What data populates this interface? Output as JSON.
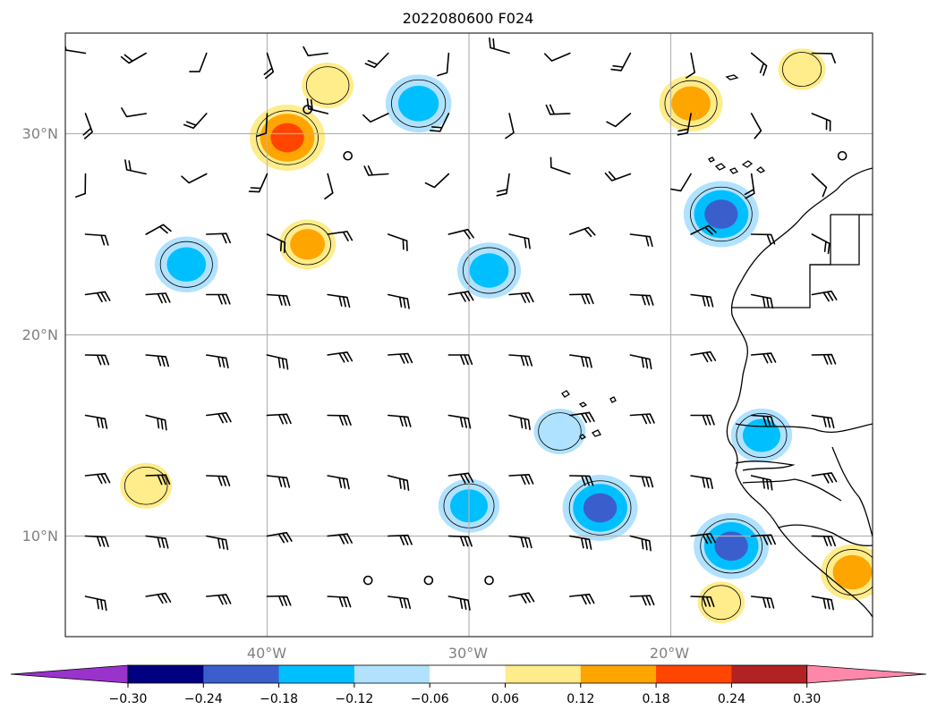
{
  "chart_data": {
    "type": "contour-map",
    "title": "2022080600 F024",
    "extent": {
      "lon_min": -50,
      "lon_max": -10,
      "lat_min": 5,
      "lat_max": 35
    },
    "xticks": [
      {
        "value": -40,
        "label": "40°W"
      },
      {
        "value": -30,
        "label": "30°W"
      },
      {
        "value": -20,
        "label": "20°W"
      }
    ],
    "yticks": [
      {
        "value": 30,
        "label": "30°N"
      },
      {
        "value": 20,
        "label": "20°N"
      },
      {
        "value": 10,
        "label": "10°N"
      }
    ],
    "grid": true,
    "colorbar": {
      "orientation": "horizontal",
      "extend": "both",
      "ticks": [
        {
          "value": -0.3,
          "label": "−0.30"
        },
        {
          "value": -0.24,
          "label": "−0.24"
        },
        {
          "value": -0.18,
          "label": "−0.18"
        },
        {
          "value": -0.12,
          "label": "−0.12"
        },
        {
          "value": -0.06,
          "label": "−0.06"
        },
        {
          "value": 0.06,
          "label": "0.06"
        },
        {
          "value": 0.12,
          "label": "0.12"
        },
        {
          "value": 0.18,
          "label": "0.18"
        },
        {
          "value": 0.24,
          "label": "0.24"
        },
        {
          "value": 0.3,
          "label": "0.30"
        }
      ],
      "colors": [
        "#9933cc",
        "#000080",
        "#3a5fcd",
        "#00bfff",
        "#b0e2ff",
        "#ffffff",
        "#ffec8b",
        "#ffa500",
        "#ff4500",
        "#b22222",
        "#ff88aa"
      ]
    },
    "anomalies": [
      {
        "lon": -44,
        "lat": 23.5,
        "peak": -0.15
      },
      {
        "lon": -32.5,
        "lat": 31.5,
        "peak": -0.16
      },
      {
        "lon": -29,
        "lat": 23.2,
        "peak": -0.15
      },
      {
        "lon": -17.5,
        "lat": 26.0,
        "peak": -0.2
      },
      {
        "lon": -23.5,
        "lat": 11.4,
        "peak": -0.2
      },
      {
        "lon": -17,
        "lat": 9.5,
        "peak": -0.2
      },
      {
        "lon": -30,
        "lat": 11.5,
        "peak": -0.14
      },
      {
        "lon": -15.5,
        "lat": 15.0,
        "peak": -0.14
      },
      {
        "lon": -25.5,
        "lat": 15.2,
        "peak": -0.1
      },
      {
        "lon": -39,
        "lat": 29.8,
        "peak": 0.2
      },
      {
        "lon": -37,
        "lat": 32.4,
        "peak": 0.1
      },
      {
        "lon": -38,
        "lat": 24.5,
        "peak": 0.12
      },
      {
        "lon": -19,
        "lat": 31.5,
        "peak": 0.15
      },
      {
        "lon": -46,
        "lat": 12.5,
        "peak": 0.1
      },
      {
        "lon": -11,
        "lat": 8.2,
        "peak": 0.15
      },
      {
        "lon": -13.5,
        "lat": 33.2,
        "peak": 0.08
      },
      {
        "lon": -17.5,
        "lat": 6.7,
        "peak": 0.08
      }
    ],
    "wind_barbs": "regular grid of wind barbs (about 3° spacing), easterly trade winds in the tropics, mixed winds north of 26°N",
    "coastline": "West African coast (Morocco, Western Sahara, Mauritania, Senegal, Guinea), Canary and Cape Verde islands"
  }
}
